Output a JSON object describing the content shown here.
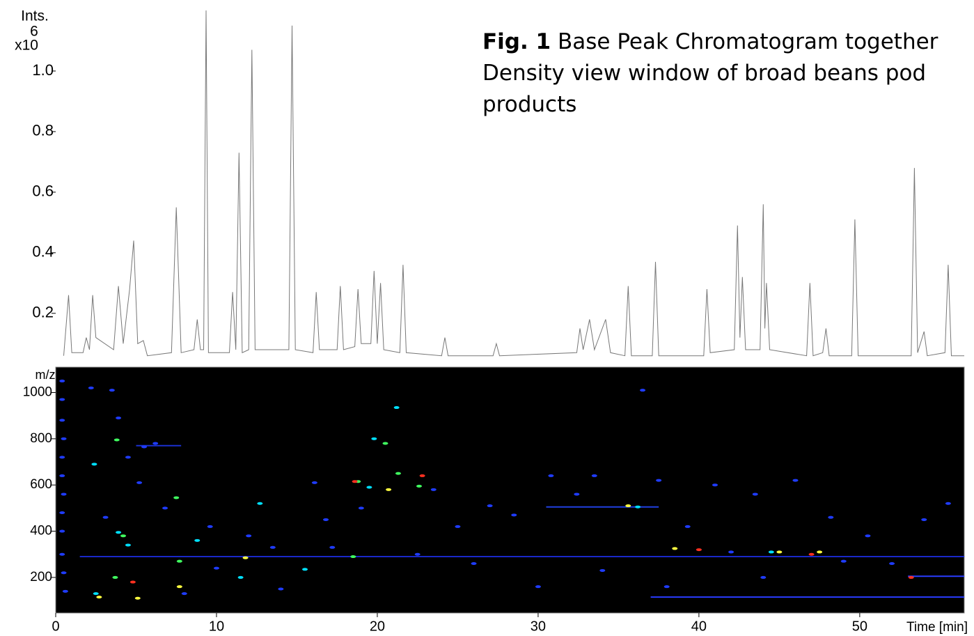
{
  "caption": {
    "label": "Fig. 1",
    "lines": [
      "Base Peak Chromatogram together",
      "Density view window of broad beans pod",
      "products"
    ]
  },
  "chart_data": [
    {
      "type": "line",
      "y_label": "Ints.",
      "y_multiplier": "x10",
      "y_exponent": "6",
      "color": "#777777",
      "xlim": [
        0,
        56.5
      ],
      "ylim": [
        0.05,
        1.2
      ],
      "yticks": [
        0.2,
        0.4,
        0.6,
        0.8,
        {
          "value": 1.0,
          "label": "1.0"
        }
      ],
      "x": [
        0.5,
        0.8,
        1.0,
        1.7,
        1.9,
        2.1,
        2.3,
        2.5,
        3.6,
        3.9,
        4.2,
        4.6,
        4.85,
        5.1,
        5.45,
        5.7,
        7.2,
        7.5,
        7.8,
        8.6,
        8.8,
        9.0,
        9.2,
        9.35,
        9.5,
        10.8,
        11.0,
        11.2,
        11.4,
        11.6,
        12.0,
        12.2,
        12.4,
        14.5,
        14.7,
        14.9,
        16.0,
        16.2,
        16.4,
        17.5,
        17.7,
        17.9,
        18.6,
        18.8,
        19.0,
        19.6,
        19.8,
        20.0,
        20.2,
        20.4,
        21.4,
        21.6,
        21.8,
        24.0,
        24.2,
        24.4,
        27.2,
        27.4,
        27.6,
        32.4,
        32.6,
        32.8,
        33.2,
        33.5,
        34.2,
        34.5,
        35.4,
        35.6,
        35.8,
        37.1,
        37.3,
        37.5,
        40.3,
        40.5,
        40.7,
        42.2,
        42.4,
        42.55,
        42.7,
        42.9,
        43.8,
        44.0,
        44.1,
        44.2,
        44.4,
        46.7,
        46.9,
        47.1,
        47.7,
        47.9,
        48.1,
        49.5,
        49.7,
        49.9,
        53.2,
        53.4,
        53.6,
        54.0,
        54.2,
        55.3,
        55.5,
        55.7,
        56.5
      ],
      "values": [
        0.06,
        0.26,
        0.07,
        0.07,
        0.12,
        0.08,
        0.26,
        0.12,
        0.08,
        0.29,
        0.1,
        0.28,
        0.44,
        0.1,
        0.11,
        0.06,
        0.07,
        0.55,
        0.07,
        0.08,
        0.18,
        0.08,
        0.08,
        1.2,
        0.07,
        0.07,
        0.27,
        0.08,
        0.73,
        0.07,
        0.08,
        1.07,
        0.08,
        0.08,
        1.15,
        0.08,
        0.07,
        0.27,
        0.08,
        0.08,
        0.29,
        0.08,
        0.09,
        0.28,
        0.1,
        0.1,
        0.34,
        0.1,
        0.3,
        0.08,
        0.07,
        0.36,
        0.07,
        0.06,
        0.12,
        0.06,
        0.06,
        0.1,
        0.06,
        0.07,
        0.15,
        0.08,
        0.18,
        0.08,
        0.18,
        0.07,
        0.06,
        0.29,
        0.06,
        0.06,
        0.37,
        0.06,
        0.06,
        0.28,
        0.07,
        0.08,
        0.49,
        0.12,
        0.32,
        0.08,
        0.08,
        0.56,
        0.15,
        0.3,
        0.08,
        0.06,
        0.3,
        0.06,
        0.07,
        0.15,
        0.06,
        0.06,
        0.51,
        0.06,
        0.06,
        0.68,
        0.07,
        0.14,
        0.06,
        0.07,
        0.36,
        0.06,
        0.06
      ]
    },
    {
      "type": "density",
      "y_label": "m/z",
      "x_label": "Time [min]",
      "background": "#000000",
      "xlim": [
        0,
        56.5
      ],
      "ylim": [
        46,
        1110
      ],
      "xticks": [
        0,
        10,
        20,
        30,
        40,
        50
      ],
      "yticks": [
        200,
        400,
        600,
        800,
        1000
      ],
      "streaks": [
        {
          "y": 115,
          "x": [
            37,
            56.5
          ],
          "color": "#2a3cff"
        },
        {
          "y": 290,
          "x": [
            1.5,
            56.5
          ],
          "color": "#1a28c8"
        },
        {
          "y": 205,
          "x": [
            53,
            56.5
          ],
          "color": "#2a3cff"
        },
        {
          "y": 505,
          "x": [
            30.5,
            37.5
          ],
          "color": "#2040e0"
        },
        {
          "y": 770,
          "x": [
            5.0,
            7.8
          ],
          "color": "#1a30d0"
        }
      ],
      "series": [
        {
          "color": "#1f3cff",
          "x": [
            0.4,
            0.4,
            0.4,
            0.5,
            0.4,
            0.4,
            0.5,
            0.4,
            0.4,
            0.4,
            0.5,
            0.6,
            2.2,
            3.5,
            3.9,
            5.5,
            6.2,
            4.5,
            5.2,
            6.8,
            3.1,
            9.6,
            12,
            13.5,
            16.1,
            16.8,
            17.2,
            19,
            23.5,
            25,
            27,
            28.5,
            30.8,
            32.4,
            33.5,
            36.5,
            37.5,
            39.3,
            41,
            43.5,
            46,
            48.2,
            50.5,
            54,
            55.5,
            52,
            44,
            38,
            30,
            26,
            14,
            10,
            8,
            22.5,
            34,
            42,
            49
          ],
          "y": [
            1050,
            970,
            880,
            800,
            720,
            640,
            560,
            480,
            400,
            300,
            220,
            140,
            1020,
            1010,
            890,
            765,
            780,
            720,
            610,
            500,
            460,
            420,
            380,
            330,
            610,
            450,
            330,
            500,
            580,
            420,
            510,
            470,
            640,
            560,
            640,
            1010,
            620,
            420,
            600,
            560,
            620,
            460,
            380,
            450,
            520,
            260,
            200,
            160,
            160,
            260,
            150,
            240,
            130,
            300,
            230,
            310,
            270
          ]
        },
        {
          "color": "#00e0ff",
          "x": [
            2.4,
            4.5,
            8.8,
            12.7,
            15.5,
            21.2,
            19.8,
            3.9,
            2.5,
            11.5,
            19.5,
            36.2,
            44.5
          ],
          "y": [
            690,
            340,
            360,
            520,
            235,
            935,
            800,
            395,
            130,
            200,
            590,
            505,
            310
          ]
        },
        {
          "color": "#40ff60",
          "x": [
            3.8,
            4.2,
            7.5,
            18.5,
            20.5,
            21.3,
            22.6,
            3.7,
            7.7,
            18.8
          ],
          "y": [
            795,
            380,
            545,
            290,
            780,
            650,
            595,
            200,
            270,
            615
          ]
        },
        {
          "color": "#ffff40",
          "x": [
            11.8,
            5.1,
            2.7,
            7.7,
            20.7,
            35.6,
            38.5,
            45,
            47.5
          ],
          "y": [
            285,
            110,
            115,
            160,
            580,
            510,
            325,
            310,
            310
          ]
        },
        {
          "color": "#ff3020",
          "x": [
            4.8,
            18.6,
            22.8,
            53.2,
            47,
            40
          ],
          "y": [
            180,
            615,
            640,
            200,
            300,
            320
          ]
        }
      ]
    }
  ]
}
